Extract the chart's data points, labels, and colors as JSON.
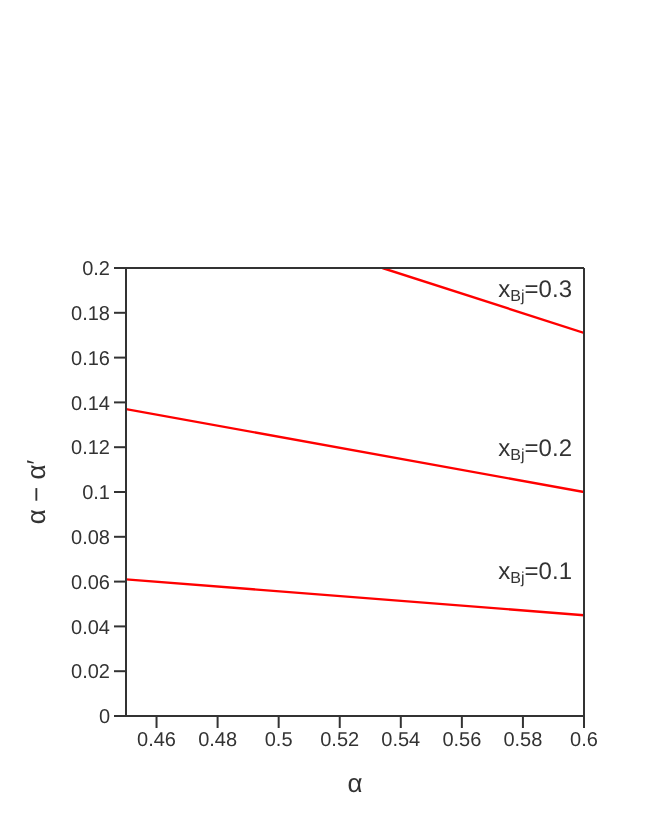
{
  "chart_data": {
    "type": "line",
    "xlabel": "α",
    "ylabel": "α − α′",
    "xlim": [
      0.45,
      0.6
    ],
    "xticks": [
      0.46,
      0.48,
      0.5,
      0.52,
      0.54,
      0.56,
      0.58,
      0.6
    ],
    "ylim": [
      0,
      0.2
    ],
    "yticks": [
      0,
      0.02,
      0.04,
      0.06,
      0.08,
      0.1,
      0.12,
      0.14,
      0.16,
      0.18,
      0.2
    ],
    "grid": false,
    "legend": false,
    "marker": "none",
    "line_style": "solid",
    "series": [
      {
        "name": "x$_{Bj}$=0.3",
        "color": "#ff0000",
        "x": [
          0.534,
          0.6
        ],
        "values": [
          0.2,
          0.171
        ]
      },
      {
        "name": "x$_{Bj}$=0.2",
        "color": "#ff0000",
        "x": [
          0.45,
          0.6
        ],
        "values": [
          0.137,
          0.1
        ]
      },
      {
        "name": "x$_{Bj}$=0.1",
        "color": "#ff0000",
        "x": [
          0.45,
          0.6
        ],
        "values": [
          0.061,
          0.045
        ]
      }
    ]
  }
}
